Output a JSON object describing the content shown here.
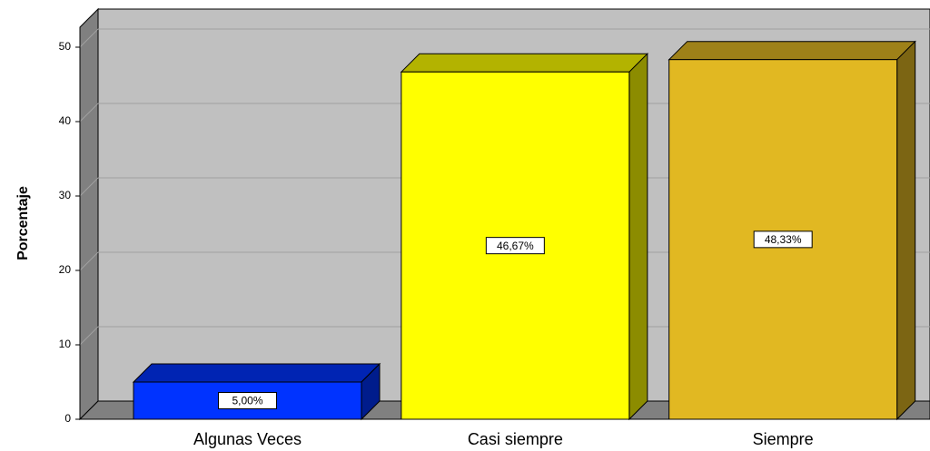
{
  "chart_data": {
    "type": "bar3d",
    "y_label": "Porcentaje",
    "categories": [
      "Algunas Veces",
      "Casi siempre",
      "Siempre"
    ],
    "values": [
      5.0,
      46.67,
      48.33
    ],
    "value_labels": [
      "5,00%",
      "46,67%",
      "48,33%"
    ],
    "colors": [
      "#0033ff",
      "#ffff00",
      "#e1b822"
    ],
    "ylim": [
      0,
      50
    ],
    "yticks": [
      0,
      10,
      20,
      30,
      40,
      50
    ],
    "grid": true
  }
}
